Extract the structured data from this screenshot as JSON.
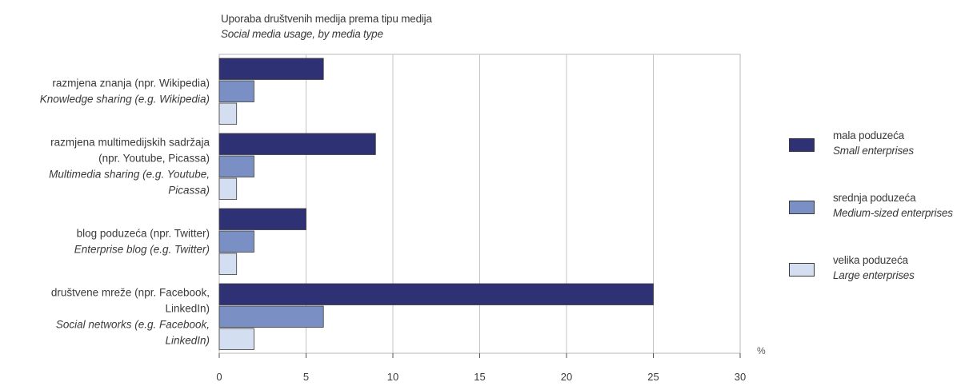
{
  "chart_data": {
    "type": "bar",
    "orientation": "horizontal",
    "title": "Uporaba društvenih medija prema tipu medija",
    "subtitle": "Social media usage, by media type",
    "unit": "%",
    "xlim": [
      0,
      30
    ],
    "xticks": [
      0,
      5,
      10,
      15,
      20,
      25,
      30
    ],
    "grid": true,
    "legend_position": "right",
    "categories": [
      {
        "hr": [
          "razmjena znanja (npr. Wikipedia)"
        ],
        "en": [
          "Knowledge sharing (e.g. Wikipedia)"
        ]
      },
      {
        "hr": [
          "razmjena multimedijskih sadržaja",
          "(npr. Youtube, Picassa)"
        ],
        "en": [
          "Multimedia sharing (e.g. Youtube,",
          "Picassa)"
        ]
      },
      {
        "hr": [
          "blog poduzeća (npr. Twitter)"
        ],
        "en": [
          "Enterprise blog (e.g. Twitter)"
        ]
      },
      {
        "hr": [
          "društvene mreže (npr. Facebook,",
          "LinkedIn)"
        ],
        "en": [
          "Social networks (e.g. Facebook,",
          "LinkedIn)"
        ]
      }
    ],
    "series": [
      {
        "name": "mala poduzeća",
        "name_en": "Small enterprises",
        "color": "#2e3275",
        "values": [
          6,
          9,
          5,
          25
        ]
      },
      {
        "name": "srednja poduzeća",
        "name_en": "Medium-sized enterprises",
        "color": "#7a8fc4",
        "values": [
          2,
          2,
          2,
          6
        ]
      },
      {
        "name": "velika poduzeća",
        "name_en": "Large enterprises",
        "color": "#d3def0",
        "values": [
          1,
          1,
          1,
          2
        ]
      }
    ]
  }
}
